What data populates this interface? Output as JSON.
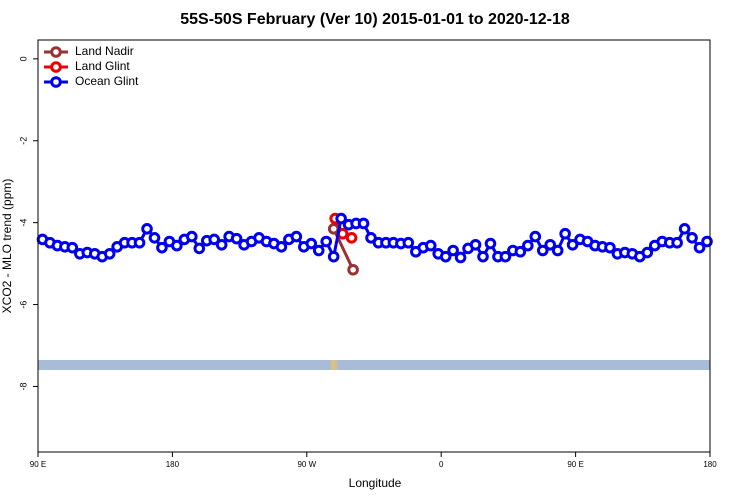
{
  "chart_data": {
    "type": "line",
    "title": "55S-50S February (Ver 10)   2015-01-01 to 2020-12-18",
    "xlabel": "Longitude",
    "ylabel": "XCO2 - MLO trend (ppm)",
    "xlim": [
      90,
      540
    ],
    "ylim": [
      -9.6,
      0.46
    ],
    "xticks": [
      {
        "value": 90,
        "label": "90 E"
      },
      {
        "value": 180,
        "label": "180"
      },
      {
        "value": 270,
        "label": "90 W"
      },
      {
        "value": 360,
        "label": "0"
      },
      {
        "value": 450,
        "label": "90 E"
      },
      {
        "value": 540,
        "label": "180"
      }
    ],
    "yticks": [
      0,
      -2,
      -4,
      -6,
      -8
    ],
    "legend": "top-left",
    "series": [
      {
        "name": "Land Nadir",
        "color": "#993333",
        "x": [
          288,
          301
        ],
        "values": [
          -4.15,
          -5.15
        ]
      },
      {
        "name": "Land Glint",
        "color": "#ee0000",
        "x": [
          289,
          294,
          300
        ],
        "values": [
          -3.9,
          -4.27,
          -4.37
        ]
      },
      {
        "name": "Ocean Glint",
        "color": "#0000ee",
        "x": [
          93,
          98,
          103,
          108,
          113,
          118,
          123,
          128,
          133,
          138,
          143,
          148,
          153,
          158,
          163,
          168,
          173,
          178,
          183,
          188,
          193,
          198,
          203,
          208,
          213,
          218,
          223,
          228,
          233,
          238,
          243,
          248,
          253,
          258,
          263,
          268,
          273,
          278,
          283,
          288,
          293,
          298,
          303,
          308,
          313,
          318,
          323,
          328,
          333,
          338,
          343,
          348,
          353,
          358,
          363,
          368,
          373,
          378,
          383,
          388,
          393,
          398,
          403,
          408,
          413,
          418,
          423,
          428,
          433,
          438,
          443,
          448,
          453,
          458,
          463,
          468,
          473,
          478,
          483,
          488,
          493,
          498,
          503,
          508,
          513,
          518,
          523,
          528,
          533,
          538
        ],
        "values": [
          -4.41,
          -4.49,
          -4.56,
          -4.59,
          -4.61,
          -4.76,
          -4.73,
          -4.76,
          -4.83,
          -4.76,
          -4.59,
          -4.49,
          -4.49,
          -4.49,
          -4.15,
          -4.37,
          -4.61,
          -4.46,
          -4.56,
          -4.41,
          -4.34,
          -4.63,
          -4.44,
          -4.41,
          -4.54,
          -4.34,
          -4.39,
          -4.54,
          -4.46,
          -4.37,
          -4.46,
          -4.51,
          -4.59,
          -4.41,
          -4.34,
          -4.59,
          -4.51,
          -4.68,
          -4.46,
          -4.83,
          -3.9,
          -4.05,
          -4.02,
          -4.02,
          -4.37,
          -4.49,
          -4.49,
          -4.49,
          -4.51,
          -4.49,
          -4.71,
          -4.61,
          -4.56,
          -4.76,
          -4.83,
          -4.68,
          -4.85,
          -4.63,
          -4.54,
          -4.83,
          -4.51,
          -4.83,
          -4.83,
          -4.68,
          -4.71,
          -4.56,
          -4.34,
          -4.68,
          -4.54,
          -4.68,
          -4.27,
          -4.54,
          -4.41,
          -4.46,
          -4.56,
          -4.59,
          -4.61,
          -4.76,
          -4.73,
          -4.76,
          -4.83,
          -4.73,
          -4.56,
          -4.46,
          -4.49,
          -4.49,
          -4.15,
          -4.37,
          -4.61,
          -4.46
        ]
      }
    ]
  }
}
